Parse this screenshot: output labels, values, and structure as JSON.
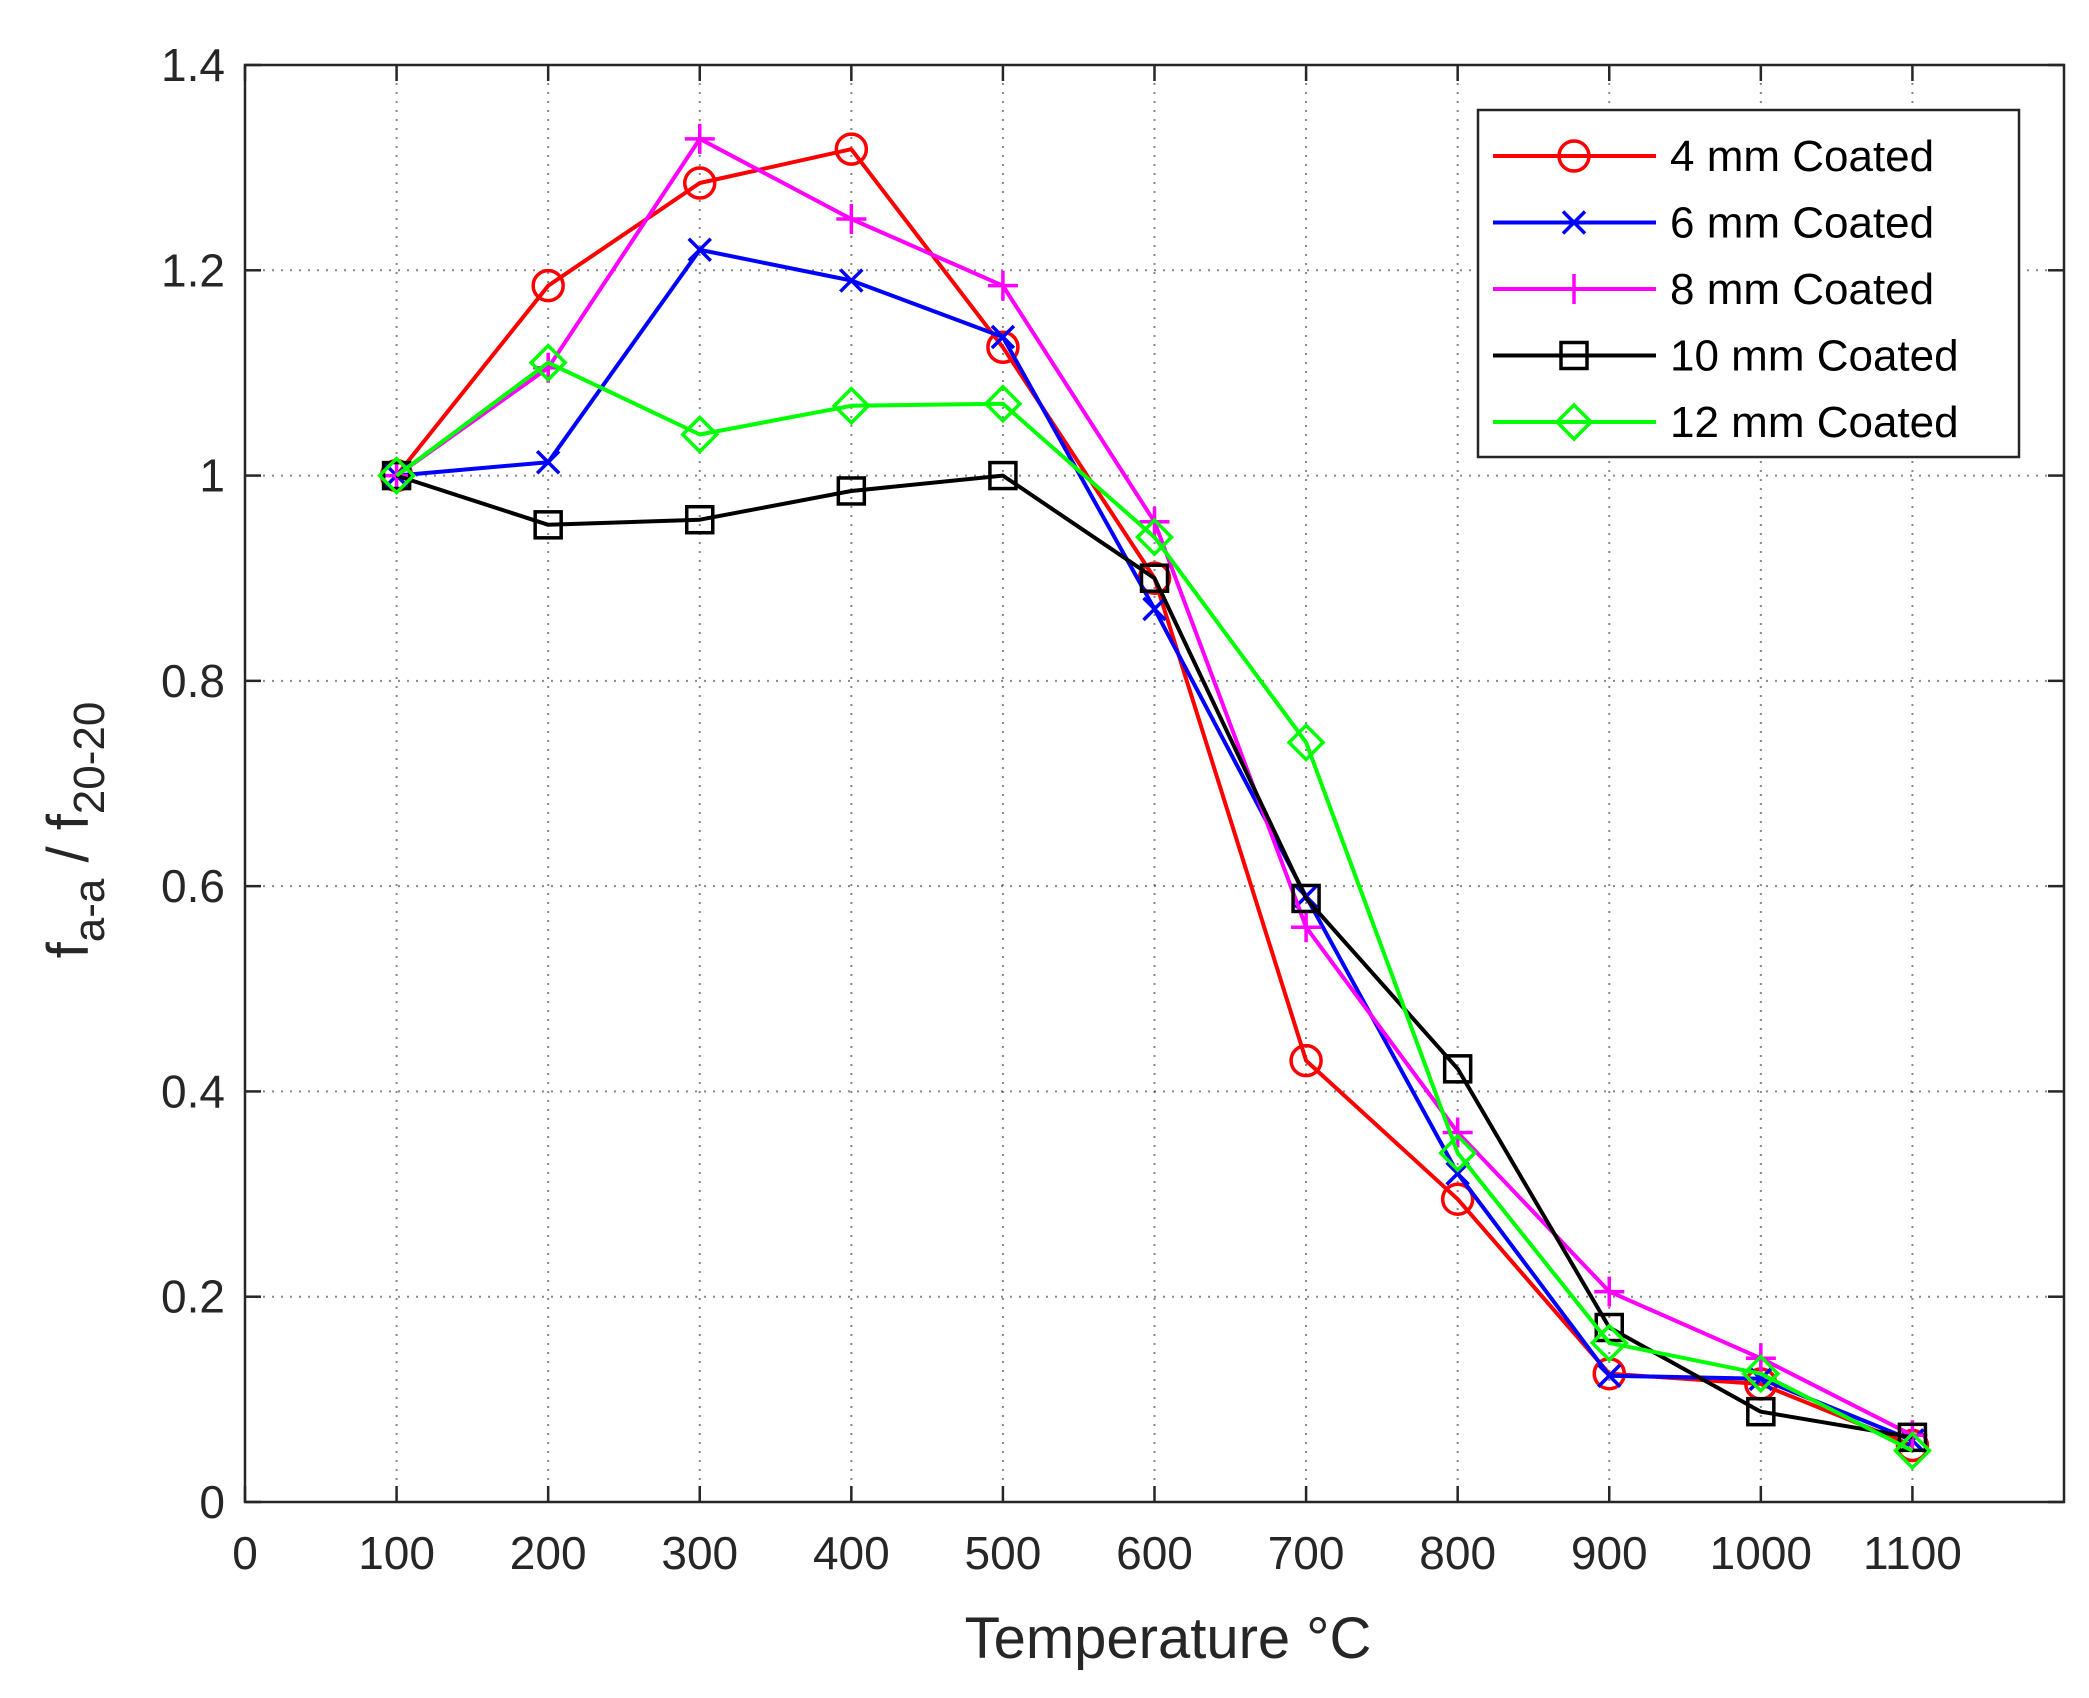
{
  "chart_data": {
    "type": "line",
    "title": "",
    "xlabel": "Temperature °C",
    "ylabel": {
      "main1": "f",
      "sub1": "a-a",
      "main2": " / f",
      "sub2": "20-20"
    },
    "xlim": [
      0,
      1200
    ],
    "ylim": [
      0,
      1.4
    ],
    "xticks": [
      0,
      100,
      200,
      300,
      400,
      500,
      600,
      700,
      800,
      900,
      1000,
      1100
    ],
    "xtick_labels": [
      "0",
      "100",
      "200",
      "300",
      "400",
      "500",
      "600",
      "700",
      "800",
      "900",
      "1000",
      "1100"
    ],
    "yticks": [
      0,
      0.2,
      0.4,
      0.6,
      0.8,
      1.0,
      1.2,
      1.4
    ],
    "ytick_labels": [
      "0",
      "0.2",
      "0.4",
      "0.6",
      "0.8",
      "1",
      "1.2",
      "1.4"
    ],
    "grid": true,
    "legend_position": "top-right",
    "x": [
      100,
      200,
      300,
      400,
      500,
      600,
      700,
      800,
      900,
      1000,
      1100
    ],
    "series": [
      {
        "name": "4 mm Coated",
        "color": "#ff0000",
        "marker": "circle",
        "values": [
          1.0,
          1.185,
          1.285,
          1.318,
          1.125,
          0.9,
          0.43,
          0.295,
          0.125,
          0.115,
          0.055
        ]
      },
      {
        "name": "6 mm Coated",
        "color": "#0000ff",
        "marker": "x",
        "values": [
          1.0,
          1.013,
          1.22,
          1.19,
          1.135,
          0.87,
          0.59,
          0.32,
          0.123,
          0.12,
          0.06
        ]
      },
      {
        "name": "8 mm Coated",
        "color": "#ff00ff",
        "marker": "plus",
        "values": [
          1.0,
          1.105,
          1.328,
          1.25,
          1.185,
          0.955,
          0.56,
          0.36,
          0.205,
          0.14,
          0.065
        ]
      },
      {
        "name": "10 mm Coated",
        "color": "#000000",
        "marker": "square",
        "values": [
          1.0,
          0.952,
          0.957,
          0.985,
          1.0,
          0.9,
          0.588,
          0.422,
          0.17,
          0.088,
          0.063
        ]
      },
      {
        "name": "12 mm Coated",
        "color": "#00ff00",
        "marker": "diamond",
        "values": [
          1.0,
          1.11,
          1.04,
          1.068,
          1.07,
          0.94,
          0.74,
          0.34,
          0.155,
          0.125,
          0.05
        ]
      }
    ]
  }
}
